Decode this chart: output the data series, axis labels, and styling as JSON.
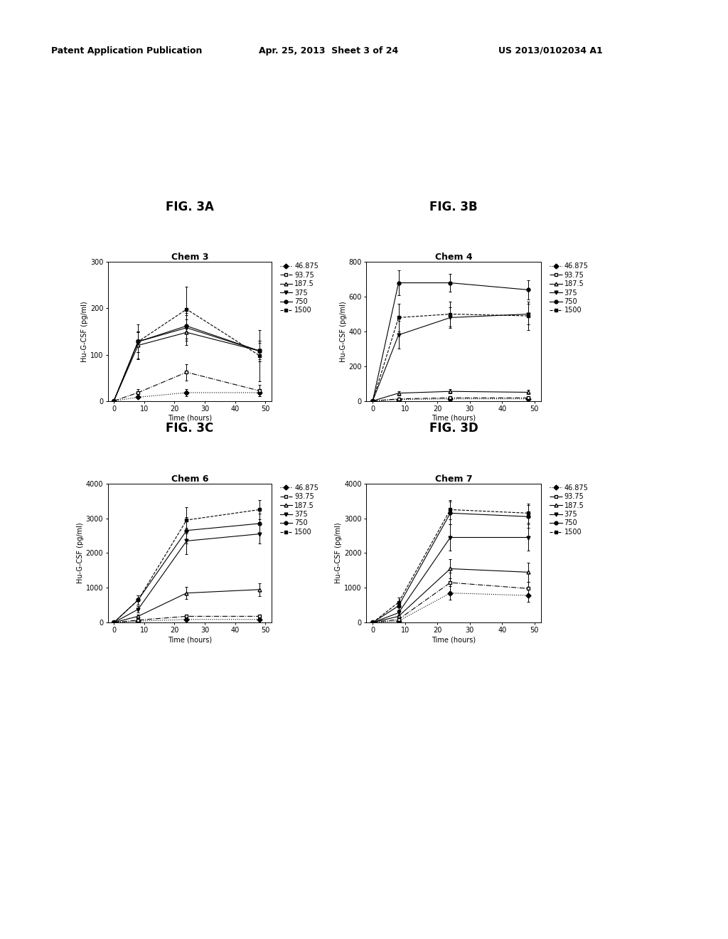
{
  "header_left": "Patent Application Publication",
  "header_center": "Apr. 25, 2013  Sheet 3 of 24",
  "header_right": "US 2013/0102034 A1",
  "panels": [
    {
      "fig_label": "FIG. 3A",
      "subtitle": "Chem 3",
      "ylabel": "Hu-G-CSF (pg/ml)",
      "xlabel": "Time (hours)",
      "ylim": [
        0,
        300
      ],
      "yticks": [
        0,
        100,
        200,
        300
      ],
      "xticks": [
        0,
        10,
        20,
        30,
        40,
        50
      ],
      "xdata": [
        0,
        8,
        24,
        48
      ],
      "series": [
        {
          "label": "46.875",
          "linestyle": "dotted",
          "marker": "D",
          "fillstyle": "full",
          "y": [
            0,
            8,
            18,
            18
          ],
          "yerr": [
            0,
            3,
            8,
            8
          ]
        },
        {
          "label": "93.75",
          "linestyle": "dashdot",
          "marker": "s",
          "fillstyle": "none",
          "y": [
            0,
            18,
            62,
            22
          ],
          "yerr": [
            0,
            8,
            18,
            12
          ]
        },
        {
          "label": "187.5",
          "linestyle": "solid",
          "marker": "^",
          "fillstyle": "none",
          "y": [
            0,
            120,
            148,
            108
          ],
          "yerr": [
            0,
            28,
            28,
            22
          ]
        },
        {
          "label": "375",
          "linestyle": "solid",
          "marker": "v",
          "fillstyle": "full",
          "y": [
            0,
            128,
            158,
            108
          ],
          "yerr": [
            0,
            22,
            28,
            18
          ]
        },
        {
          "label": "750",
          "linestyle": "solid",
          "marker": "o",
          "fillstyle": "full",
          "y": [
            0,
            128,
            162,
            108
          ],
          "yerr": [
            0,
            22,
            28,
            22
          ]
        },
        {
          "label": "1500",
          "linestyle": "dashed",
          "marker": "s",
          "fillstyle": "full",
          "y": [
            0,
            128,
            198,
            98
          ],
          "yerr": [
            0,
            38,
            48,
            55
          ]
        }
      ]
    },
    {
      "fig_label": "FIG. 3B",
      "subtitle": "Chem 4",
      "ylabel": "Hu-G-CSF (pg/ml)",
      "xlabel": "Time (hours)",
      "ylim": [
        0,
        800
      ],
      "yticks": [
        0,
        200,
        400,
        600,
        800
      ],
      "xticks": [
        0,
        10,
        20,
        30,
        40,
        50
      ],
      "xdata": [
        0,
        8,
        24,
        48
      ],
      "series": [
        {
          "label": "46.875",
          "linestyle": "dotted",
          "marker": "D",
          "fillstyle": "full",
          "y": [
            0,
            8,
            12,
            12
          ],
          "yerr": [
            0,
            3,
            4,
            4
          ]
        },
        {
          "label": "93.75",
          "linestyle": "dashdot",
          "marker": "s",
          "fillstyle": "none",
          "y": [
            0,
            12,
            18,
            18
          ],
          "yerr": [
            0,
            4,
            4,
            4
          ]
        },
        {
          "label": "187.5",
          "linestyle": "solid",
          "marker": "^",
          "fillstyle": "none",
          "y": [
            0,
            45,
            55,
            50
          ],
          "yerr": [
            0,
            12,
            12,
            12
          ]
        },
        {
          "label": "375",
          "linestyle": "solid",
          "marker": "v",
          "fillstyle": "full",
          "y": [
            0,
            380,
            480,
            500
          ],
          "yerr": [
            0,
            80,
            60,
            60
          ]
        },
        {
          "label": "750",
          "linestyle": "solid",
          "marker": "o",
          "fillstyle": "full",
          "y": [
            0,
            680,
            680,
            640
          ],
          "yerr": [
            0,
            70,
            50,
            55
          ]
        },
        {
          "label": "1500",
          "linestyle": "dashed",
          "marker": "s",
          "fillstyle": "full",
          "y": [
            0,
            480,
            500,
            490
          ],
          "yerr": [
            0,
            80,
            70,
            80
          ]
        }
      ]
    },
    {
      "fig_label": "FIG. 3C",
      "subtitle": "Chem 6",
      "ylabel": "Hu-G-CSF (pg/ml)",
      "xlabel": "Time (hours)",
      "ylim": [
        0,
        4000
      ],
      "yticks": [
        0,
        1000,
        2000,
        3000,
        4000
      ],
      "xticks": [
        0,
        10,
        20,
        30,
        40,
        50
      ],
      "xdata": [
        0,
        8,
        24,
        48
      ],
      "series": [
        {
          "label": "46.875",
          "linestyle": "dotted",
          "marker": "D",
          "fillstyle": "full",
          "y": [
            0,
            40,
            90,
            90
          ],
          "yerr": [
            0,
            15,
            25,
            25
          ]
        },
        {
          "label": "93.75",
          "linestyle": "dashdot",
          "marker": "s",
          "fillstyle": "none",
          "y": [
            0,
            70,
            180,
            180
          ],
          "yerr": [
            0,
            25,
            45,
            45
          ]
        },
        {
          "label": "187.5",
          "linestyle": "solid",
          "marker": "^",
          "fillstyle": "none",
          "y": [
            0,
            180,
            850,
            950
          ],
          "yerr": [
            0,
            55,
            180,
            180
          ]
        },
        {
          "label": "375",
          "linestyle": "solid",
          "marker": "v",
          "fillstyle": "full",
          "y": [
            0,
            380,
            2350,
            2550
          ],
          "yerr": [
            0,
            90,
            380,
            280
          ]
        },
        {
          "label": "750",
          "linestyle": "solid",
          "marker": "o",
          "fillstyle": "full",
          "y": [
            0,
            650,
            2650,
            2850
          ],
          "yerr": [
            0,
            140,
            380,
            280
          ]
        },
        {
          "label": "1500",
          "linestyle": "dashed",
          "marker": "s",
          "fillstyle": "full",
          "y": [
            0,
            650,
            2950,
            3250
          ],
          "yerr": [
            0,
            140,
            380,
            280
          ]
        }
      ]
    },
    {
      "fig_label": "FIG. 3D",
      "subtitle": "Chem 7",
      "ylabel": "Hu-G-CSF (pg/ml)",
      "xlabel": "Time (hours)",
      "ylim": [
        0,
        4000
      ],
      "yticks": [
        0,
        1000,
        2000,
        3000,
        4000
      ],
      "xticks": [
        0,
        10,
        20,
        30,
        40,
        50
      ],
      "xdata": [
        0,
        8,
        24,
        48
      ],
      "series": [
        {
          "label": "46.875",
          "linestyle": "dotted",
          "marker": "D",
          "fillstyle": "full",
          "y": [
            0,
            45,
            850,
            780
          ],
          "yerr": [
            0,
            18,
            190,
            190
          ]
        },
        {
          "label": "93.75",
          "linestyle": "dashdot",
          "marker": "s",
          "fillstyle": "none",
          "y": [
            0,
            90,
            1150,
            980
          ],
          "yerr": [
            0,
            28,
            280,
            190
          ]
        },
        {
          "label": "187.5",
          "linestyle": "solid",
          "marker": "^",
          "fillstyle": "none",
          "y": [
            0,
            180,
            1550,
            1450
          ],
          "yerr": [
            0,
            55,
            280,
            280
          ]
        },
        {
          "label": "375",
          "linestyle": "solid",
          "marker": "v",
          "fillstyle": "full",
          "y": [
            0,
            280,
            2450,
            2450
          ],
          "yerr": [
            0,
            75,
            380,
            380
          ]
        },
        {
          "label": "750",
          "linestyle": "solid",
          "marker": "o",
          "fillstyle": "full",
          "y": [
            0,
            480,
            3150,
            3050
          ],
          "yerr": [
            0,
            115,
            330,
            330
          ]
        },
        {
          "label": "1500",
          "linestyle": "dashed",
          "marker": "s",
          "fillstyle": "full",
          "y": [
            0,
            580,
            3250,
            3150
          ],
          "yerr": [
            0,
            140,
            280,
            280
          ]
        }
      ]
    }
  ],
  "bg_color": "#ffffff",
  "fontsize_header": 9,
  "fontsize_fig_label": 12,
  "fontsize_subtitle": 9,
  "fontsize_axis_label": 7,
  "fontsize_tick": 7,
  "fontsize_legend": 7
}
